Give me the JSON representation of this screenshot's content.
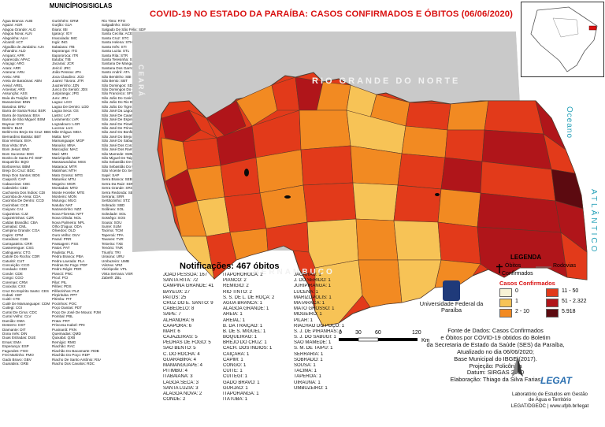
{
  "title": "COVID-19 NO ESTADO DA PARAÍBA: CASOS CONFIRMADOS E  ÓBITOS (06/06/2020)",
  "municipios_title": "MUNICÍPIOS/SIGLAS",
  "municipios": {
    "col1": [
      "Água Branca: AUB",
      "Aguiar: AGR",
      "Alagoa Grande: ALG",
      "Alagoa Nova: ALN",
      "Alagoinha: ALH",
      "Alcantil: ACT",
      "Algodão de Jandaíra: AJA",
      "Alhandra: ALD",
      "Amparo: APR",
      "Aparecida: APAC",
      "Araçagi: ARG",
      "Arara: ARR",
      "Araruna: ARU",
      "Areia: ARE",
      "Areia de Baraúnas: ABN",
      "Areial: AREL",
      "Aroeiras: ARS",
      "Assunção: ASS",
      "Baía da Traição: BTC",
      "Bananeiras: BNN",
      "Baraúna: BRU",
      "Barra de Santa Rosa: BSR",
      "Barra de Santana: BSA",
      "Barra de São Miguel: BSM",
      "Bayeux: BYX",
      "Belém: BLM",
      "Belém Do Brejo Do Cruz: BBC",
      "Bernardino Batista: BBT",
      "Boa Ventura: BVA",
      "Boa Vista: BVA",
      "Bom Jesus: BMJ",
      "Bom Sucesso: BSC",
      "Bonito de Santa Fé: BSF",
      "Boqueirão: BQO",
      "Borborema: BBM",
      "Brejo Do Cruz: BDC",
      "Brejo Dos Santos: BDS",
      "Caaporã: CAP",
      "Cabaceiras: CBC",
      "Cabedelo: CBD",
      "Cachoeira Dos Índios: CDI",
      "Cacimba de Areia: CDA",
      "Cacimba De Dentro: CCD",
      "Cacimbas: CCB",
      "Caiçara: CAI",
      "Cajazeiras: CJZ",
      "Cajazeirinhas: CZR",
      "Caldas Brandão: CBA",
      "Camalaú: CML",
      "Campina Grande: CGA",
      "Capim: CPM",
      "Caraúbas: CUB",
      "Carrapateira: CRR",
      "Casserengue: CSG",
      "Catingueira: CTG",
      "Catolé Do Rocha: CDR",
      "Caturité: CUT",
      "Conceição: CCO",
      "Condado: CDD",
      "Conde: CDE",
      "Congo: CGO",
      "Coremas: CRM",
      "Coxixola: CXX",
      "Cruz Do Espírito Santo: CES",
      "Cubati: CBT",
      "Cuité: CTE",
      "Cuité De Mamanguape: CDM",
      "Cuitegi: CGI",
      "Curral De Cima: CDC",
      "Curral Velho: CLV",
      "Damião: DMA",
      "Desterro: DST",
      "Diamante: DIT",
      "Dona Inês: DIN",
      "Duas Estradas: DUE",
      "Emas: EMA",
      "Esperança: ESP",
      "Fagundes: FGD",
      "Frei Martinho: FMO",
      "Gado Bravo: GBV",
      "Guarabira: GRB"
    ],
    "col2": [
      "Gurinhém: GRM",
      "Gurjão: GJA",
      "Ibiara: IBI",
      "Igaracy: IGY",
      "Imaculada: IMC",
      "Ingá: ING",
      "Itabaiana: ITB",
      "Itaporanga: ITG",
      "Itapororoca: ITR",
      "Itatuba: TIB",
      "Jacaraú: JCR",
      "Jericó: JRC",
      "João Pessoa: JPA",
      "Joca Claudino: JCD",
      "Juarez Távora: JTR",
      "Juazeirinho: JZN",
      "Junco Do Seridó: JDS",
      "Juripiranga: JPG",
      "Juru: JRU",
      "Lagoa: LGO",
      "Lagoa De Dentro: LDD",
      "Lagoa Seca: GS",
      "Lastro: LAT",
      "Livramento: LVR",
      "Logradouro: LGR",
      "Lucena: LUC",
      "Mãe D'água: MDA",
      "Malta: MAT",
      "Mamanguape: MGP",
      "Manaíra: MNA",
      "Marcação: MAC",
      "Mari: MRI",
      "Marizópolis: MZP",
      "Massaranduba: MSS",
      "Mataraca: MTR",
      "Matinhas: MTH",
      "Mato Grosso: MTG",
      "Maturéia: MTU",
      "Mogeiro: MGR",
      "Montadas: MTD",
      "Monte Horebe: MTE",
      "Monteiro: MON",
      "Mulungu: MUG",
      "Natuba: NAT",
      "Nazarezinho: NZZ",
      "Nova Floresta: NFT",
      "Nova Olinda: NOL",
      "Nova Palmeira: NPL",
      "Olho D'água: ODA",
      "Olivedos: OLD",
      "Ouro Velho: OUV",
      "Parari: PRR",
      "Passagem: PSS",
      "Patos: PAT",
      "Paulista: PUL",
      "Pedra Branca: PBA",
      "Pedra Lavrada: PLA",
      "Pedras De Fogo: PDF",
      "Pedro Régis: PDR",
      "Piancó: PNC",
      "Picuí: PCI",
      "Pilar: PIL",
      "Pilões: PDS",
      "Pilõezinhos: PLZ",
      "Pirpirituba: PPT",
      "Pitimbu: PIT",
      "Pocinhos: POC",
      "Poço Dantas: PDT",
      "Poço De José De Moura: PJM",
      "Pombal: PBL",
      "Prata: PRT",
      "Princesa Isabel: PRI",
      "Puxinanã: PXN",
      "Queimadas: QMD",
      "Quixabá: QXB",
      "Remígio: RMG",
      "Riachão: RAC",
      "Riachão Do Bacamarte: RDB",
      "Riachão Do Poço: RDP",
      "Riacho De Santo Antônio: RSA",
      "Riacho Dos Cavalos: RDC"
    ],
    "col3": [
      "Rio Tinto: RTO",
      "Salgadinho: SGO",
      "Salgado De São Félix: SDF",
      "Santa Cecília: ACE",
      "Santa Cruz: STC",
      "Santa Helena: STH",
      "Santa Inês: STI",
      "Santa Luzia: STL",
      "Santa Rita: STR",
      "Santa Teresinha: STT",
      "Santana De Mangueira: STM",
      "Santana Dos Garrotes: STG",
      "Santo André: ATA",
      "São Bentinho: SBI",
      "São Bento: SBT",
      "São Domingos: SDG",
      "São Domingos Do Cariri: SDC",
      "São Francisco: SFC",
      "São João Do Cariri: SJC",
      "São João Do Rio Do Peixe: SJR",
      "São João Do Tigre: SJT",
      "São José Da Lagoa Tapada: SJL",
      "São José De Caiana: SJC",
      "São José De Espinharas: SJE",
      "São José De Piranhas: SJP",
      "São José De Princesa: SJP",
      "São José Do Bonfim: SJB",
      "São José Do Brejo Do Cruz: SJB",
      "São José Do Sabugi: SJS",
      "São José Dos Cordeiros: SJC",
      "São José Dos Ramos: SJR",
      "São Mamede: SMM",
      "São Miguel De Taipu: SMT",
      "São Sebastião De Lagoa De Roça: SSR",
      "São Sebastião Do Umbuzeiro: SSU",
      "São Vicente Do Seridó: SVS",
      "Sapé: SAP",
      "Serra Branca: SEB",
      "Serra Da Raiz: SDR",
      "Serra Grande: SRG",
      "Serra Redonda: SER",
      "Serraria: SRR",
      "Sertãozinho: STZ",
      "Sobrado: SBD",
      "Solânea: SOL",
      "Soledade: SOL",
      "Sossêgo: SOS",
      "Sousa: SOU",
      "Sumé: SUM",
      "Tacima: TCM",
      "Taperoá: TPA",
      "Tavares: TVR",
      "Teixeira: TXE",
      "Tenório: TNR",
      "Triunfo: TRI",
      "Uiraúna: URU",
      "Umbuzeiro: UMB",
      "Várzea: VRZ",
      "Vieirópolis: VPL",
      "Vista Serrana: VSR",
      "Zabelê: ZBL"
    ]
  },
  "map_labels": {
    "state_rn": "RIO GRANDE DO NORTE",
    "state_ce": "CEARÁ",
    "state_pe": "PERNAMBUCO",
    "ocean_1": "Oceano",
    "ocean_2": "ATLÂNTICO"
  },
  "notificacoes": "Notificações: 467 óbitos",
  "obitos_list": {
    "col1": [
      "JOÃO PESSOA: 167",
      "SANTA RITA: 72",
      "CAMPINA GRANDE: 41",
      "BAYEUX: 27",
      "PATOS: 25",
      "CRUZ DO E. SANTO: 9",
      "CABEDELO: 8",
      "SAPÉ: 7",
      "ALHANDRA: 6",
      "CAAPORÃ: 6",
      "MARI: 6",
      "CAJAZEIRAS: 5",
      "PEDRAS DE FOGO: 5",
      "SÃO BENTO: 5",
      "C. DO ROCHA: 4",
      "GUARABIRA: 4",
      "MAMANGUAPE: 4",
      "PITIMBU: 4",
      "ITABAIANA: 3",
      "LAGOA SECA: 3",
      "SANTA LUZIA: 3",
      "ALAGOA NOVA: 2",
      "CONDE: 2"
    ],
    "col2": [
      "ITAPOROROCA: 2",
      "PIANCÓ: 2",
      "REMÍGIO: 2",
      "RIO TINTO: 2",
      "S. S. DE L. DE ROÇA: 2",
      "ÁGUA BRANCA: 1",
      "ALAGOA GRANDE: 1",
      "AREIA: 1",
      "AREIAL: 1",
      "B. DA TRAIÇÃO: 1",
      "B. DE S. MIGUEL: 1",
      "BOQUEIRÃO: 1",
      "BREJO DO CRUZ: 1",
      "CACH. DOS ÍNDIOS: 1",
      "CAIÇARA: 1",
      "CAPIM: 1",
      "CONGO: 1",
      "CUITÉ: 1",
      "CUITEGI: 1",
      "GADO BRAVO: 1",
      "GURJÃO: 1",
      "ITAPORANGA: 1",
      "ITATUBA: 1"
    ],
    "col3": [
      "JACARAÚ: 1",
      "J. DO SERIDÓ: 1",
      "JURIPIRANGA: 1",
      "LUCENA: 1",
      "MARIZÓPOLIS: 1",
      "MATARACA: 1",
      "MATO GROSSO: 1",
      "MOGEIRO: 1",
      "PILAR: 1",
      "RIACHÃO DO POÇO: 1",
      "S. J. DE PIRANHAS: 1",
      "S. J. DO SABUGI: 1",
      "SÃO MAMEDE: 1",
      "S. M. DE TAIPU: 1",
      "SERRARIA: 1",
      "SOBRADO: 1",
      "SOUSA: 1",
      "TACIMA: 1",
      "TAPEROÁ: 1",
      "UIRAÚNA: 1",
      "UMBUZEIRO: 1"
    ]
  },
  "legend": {
    "title": "LEGENDA",
    "obitos": "Óbitos",
    "confirmados": "Confirmados",
    "rodovias": "Rodovias",
    "subtitle": "Casos Confirmados",
    "classes": [
      {
        "label": "0",
        "color": "#f7f2d5"
      },
      {
        "label": "1",
        "color": "#f7c356"
      },
      {
        "label": "2 - 10",
        "color": "#f28a22"
      },
      {
        "label": "11 - 50",
        "color": "#e23a1a"
      },
      {
        "label": "51 - 2.322",
        "color": "#b0151a"
      },
      {
        "label": "5.918",
        "color": "#5c0a10"
      }
    ]
  },
  "scale": {
    "ticks": [
      "0",
      "30",
      "60",
      "120"
    ],
    "unit": "Km"
  },
  "university": "Universidade Federal da Paraíba",
  "source_lines": [
    "Fonte de Dados: Casos Confirmados",
    "e Óbitos por COVID-19 obtidos do Boletim",
    "da Secretaria de Estado da Saúde (SES) da Paraíba,",
    "Atualizado no dia 06/06/2020;",
    "Base Municipal do IBGE (2017).",
    "Projeção: Policônica",
    "Datum: SIRGAS 2000",
    "Elaboração: Thiago da Silva Farias"
  ],
  "lab_lines": [
    "Laboratório de Estudos em Gestão",
    "de Água e Território",
    "LEGAT/DGEOC | www.ufpb.br/legat"
  ],
  "colors": {
    "title": "#d91010",
    "neighbor": "#c9c9c9",
    "state_outline": "#4a3b30",
    "ocean": "#ffffff",
    "lagoon": "#0a0a0a"
  }
}
